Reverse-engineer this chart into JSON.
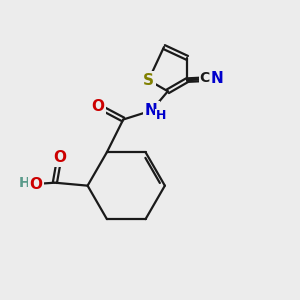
{
  "background_color": "#ececec",
  "bond_color": "#1a1a1a",
  "bond_width": 1.6,
  "atoms": {
    "S": {
      "color": "#808000",
      "fontsize": 11
    },
    "N": {
      "color": "#0000cc",
      "fontsize": 11
    },
    "O": {
      "color": "#cc0000",
      "fontsize": 11
    },
    "C": {
      "color": "#1a1a1a",
      "fontsize": 10
    },
    "H": {
      "color": "#5a9a8a",
      "fontsize": 10
    }
  },
  "figsize": [
    3.0,
    3.0
  ],
  "dpi": 100
}
